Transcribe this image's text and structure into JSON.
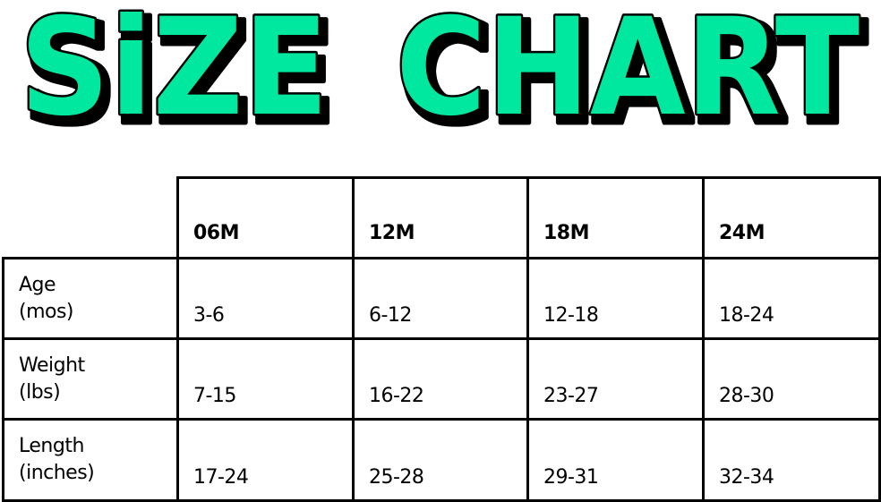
{
  "title": {
    "line1": "SiZE",
    "line2": "CHART",
    "fill_color": "#00E8A0",
    "outline_color": "#000000"
  },
  "table": {
    "columns": [
      "06M",
      "12M",
      "18M",
      "24M"
    ],
    "rows": [
      {
        "label": "Age\n(mos)",
        "values": [
          "3-6",
          "6-12",
          "12-18",
          "18-24"
        ]
      },
      {
        "label": "Weight\n(lbs)",
        "values": [
          "7-15",
          "16-22",
          "23-27",
          "28-30"
        ]
      },
      {
        "label": "Length\n(inches)",
        "values": [
          "17-24",
          "25-28",
          "29-31",
          "32-34"
        ]
      }
    ]
  }
}
